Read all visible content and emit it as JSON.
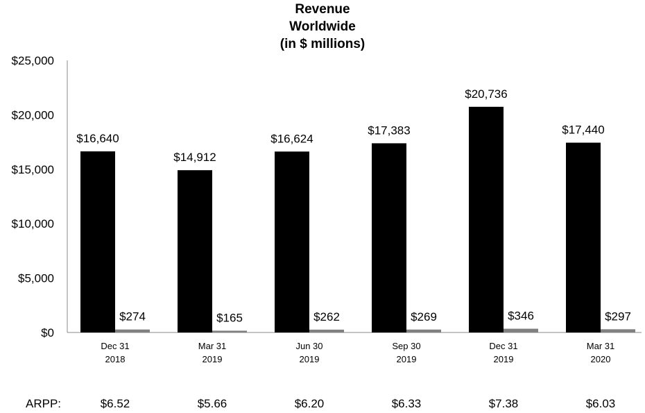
{
  "chart_data": {
    "type": "bar",
    "title": [
      "Revenue",
      "Worldwide",
      "(in $ millions)"
    ],
    "categories": [
      [
        "Dec 31",
        "2018"
      ],
      [
        "Mar 31",
        "2019"
      ],
      [
        "Jun 30",
        "2019"
      ],
      [
        "Sep 30",
        "2019"
      ],
      [
        "Dec 31",
        "2019"
      ],
      [
        "Mar 31",
        "2020"
      ]
    ],
    "series": [
      {
        "values": [
          16640,
          14912,
          16624,
          17383,
          20736,
          17440
        ],
        "labels": [
          "$16,640",
          "$14,912",
          "$16,624",
          "$17,383",
          "$20,736",
          "$17,440"
        ],
        "color": "#000000"
      },
      {
        "values": [
          274,
          165,
          262,
          269,
          346,
          297
        ],
        "labels": [
          "$274",
          "$165",
          "$262",
          "$269",
          "$346",
          "$297"
        ],
        "color": "#808080"
      }
    ],
    "ylim": [
      0,
      25000
    ],
    "yticks": [
      "$0",
      "$5,000",
      "$10,000",
      "$15,000",
      "$20,000",
      "$25,000"
    ],
    "grid": false,
    "arpp_label": "ARPP:",
    "arpp": [
      "$6.52",
      "$5.66",
      "$6.20",
      "$6.33",
      "$7.38",
      "$6.03"
    ]
  }
}
